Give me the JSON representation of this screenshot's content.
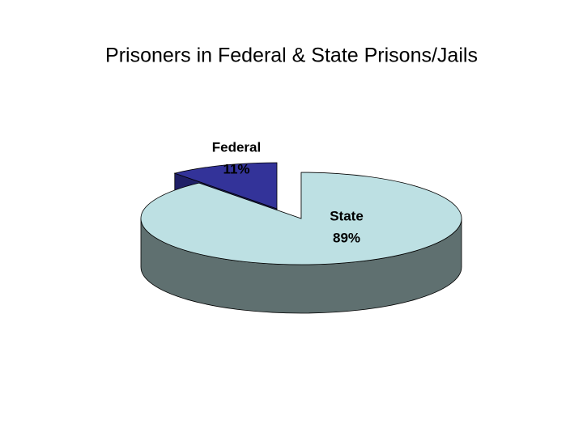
{
  "chart_data": {
    "type": "pie",
    "title": "Prisoners in Federal & State Prisons/Jails",
    "categories": [
      "Federal",
      "State"
    ],
    "values": [
      11,
      89
    ],
    "value_labels": [
      "11%",
      "89%"
    ],
    "colors": [
      "#333399",
      "#bde0e3"
    ],
    "side_colors": [
      "#1f1f66",
      "#5f7070"
    ]
  }
}
